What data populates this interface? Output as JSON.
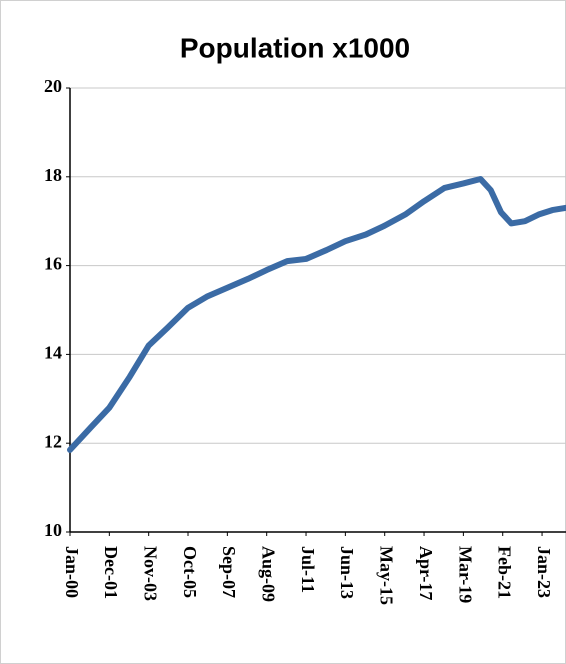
{
  "chart_data": {
    "type": "line",
    "title": "Population x1000",
    "x": [
      0,
      12,
      23,
      35,
      46,
      57,
      69,
      80,
      92,
      104,
      115,
      127,
      138,
      150,
      161,
      173,
      184,
      196,
      207,
      219,
      230,
      240,
      246,
      252,
      258,
      266,
      274,
      282,
      290
    ],
    "values": [
      11.85,
      12.35,
      12.8,
      13.5,
      14.2,
      14.6,
      15.05,
      15.3,
      15.5,
      15.7,
      15.9,
      16.1,
      16.15,
      16.35,
      16.55,
      16.7,
      16.9,
      17.15,
      17.45,
      17.75,
      17.85,
      17.95,
      17.7,
      17.2,
      16.95,
      17.0,
      17.15,
      17.25,
      17.3
    ],
    "color": "#3b6ba5",
    "xlim": [
      0,
      290
    ],
    "xticks": [
      {
        "value": 0,
        "label": "Jan-00"
      },
      {
        "value": 23,
        "label": "Dec-01"
      },
      {
        "value": 46,
        "label": "Nov-03"
      },
      {
        "value": 69,
        "label": "Oct-05"
      },
      {
        "value": 92,
        "label": "Sep-07"
      },
      {
        "value": 115,
        "label": "Aug-09"
      },
      {
        "value": 138,
        "label": "Jul-11"
      },
      {
        "value": 161,
        "label": "Jun-13"
      },
      {
        "value": 184,
        "label": "May-15"
      },
      {
        "value": 207,
        "label": "Apr-17"
      },
      {
        "value": 230,
        "label": "Mar-19"
      },
      {
        "value": 253,
        "label": "Feb-21"
      },
      {
        "value": 276,
        "label": "Jan-23"
      }
    ],
    "ylim": [
      10,
      20
    ],
    "yticks": [
      10,
      12,
      14,
      16,
      18,
      20
    ],
    "grid": true
  }
}
